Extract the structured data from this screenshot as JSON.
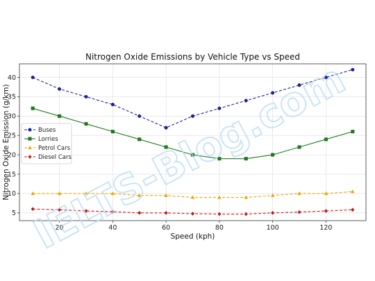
{
  "watermark": "IELTS-Blog.com",
  "chart_data": {
    "type": "line",
    "title": "Nitrogen Oxide Emissions by Vehicle Type vs Speed",
    "xlabel": "Speed (kph)",
    "ylabel": "Nitrogen Oxide Emission (g/km)",
    "x": [
      10,
      20,
      30,
      40,
      50,
      60,
      70,
      80,
      90,
      100,
      110,
      120,
      130
    ],
    "xlim": [
      5,
      135
    ],
    "ylim": [
      3,
      43.5
    ],
    "xticks": [
      20,
      40,
      60,
      80,
      100,
      120
    ],
    "yticks": [
      5,
      10,
      15,
      20,
      25,
      30,
      35,
      40
    ],
    "grid": true,
    "legend_position": "center-left",
    "series": [
      {
        "name": "Buses",
        "color": "#1f1fa0",
        "marker": "circle",
        "linestyle": "dashed",
        "values": [
          40,
          37,
          35,
          33,
          30,
          27,
          30,
          32,
          34,
          36,
          38,
          40,
          42
        ]
      },
      {
        "name": "Lorries",
        "color": "#1e7a1e",
        "marker": "square",
        "linestyle": "solid",
        "values": [
          32,
          30,
          28,
          26,
          24,
          22,
          20,
          19,
          19,
          20,
          22,
          24,
          26
        ]
      },
      {
        "name": "Petrol Cars",
        "color": "#f0a500",
        "marker": "triangle",
        "linestyle": "dashed",
        "values": [
          10,
          10,
          10,
          10,
          9.5,
          9.5,
          9,
          9,
          9,
          9.5,
          10,
          10,
          10.5
        ]
      },
      {
        "name": "Diesel Cars",
        "color": "#c41a1a",
        "marker": "diamond",
        "linestyle": "dashed",
        "values": [
          6,
          5.8,
          5.5,
          5.3,
          5,
          5,
          4.8,
          4.7,
          4.7,
          5,
          5.2,
          5.5,
          5.8
        ]
      }
    ]
  }
}
